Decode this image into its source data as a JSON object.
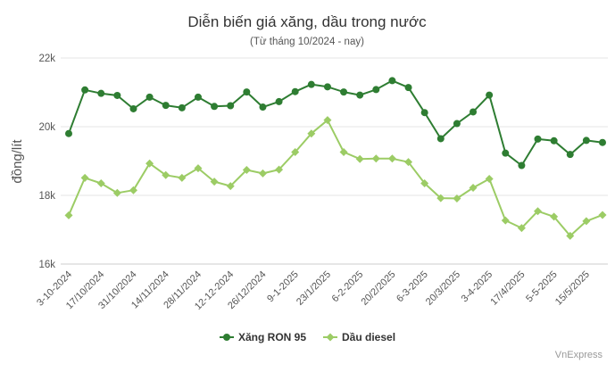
{
  "chart_data": {
    "type": "line",
    "title": "Diễn biến giá xăng, dầu trong nước",
    "subtitle": "(Từ tháng 10/2024 - nay)",
    "ylabel": "đồng/lít",
    "xlabel": "",
    "ylim": [
      16000,
      22000
    ],
    "yticks": [
      16000,
      18000,
      20000,
      22000
    ],
    "ytick_labels": [
      "16k",
      "18k",
      "20k",
      "22k"
    ],
    "x_tick_labels": [
      "3-10-2024",
      "17/10/2024",
      "31/10/2024",
      "14/11/2024",
      "28/11/2024",
      "12-12-2024",
      "26/12/2024",
      "9-1-2025",
      "23/1/2025",
      "6-2-2025",
      "20/2/2025",
      "6-3-2025",
      "20/3/2025",
      "3-4-2025",
      "17/4/2025",
      "5-5-2025",
      "15/5/2025"
    ],
    "grid": "horizontal",
    "legend_position": "bottom",
    "series": [
      {
        "name": "Xăng RON 95",
        "color": "#2e7d32",
        "values": [
          19800,
          21070,
          20970,
          20910,
          20520,
          20860,
          20620,
          20550,
          20860,
          20590,
          20610,
          21010,
          20570,
          20730,
          21020,
          21230,
          21160,
          21010,
          20920,
          21080,
          21340,
          21140,
          20410,
          19650,
          20090,
          20430,
          20920,
          19230,
          18870,
          19640,
          19590,
          19190,
          19600,
          19540
        ]
      },
      {
        "name": "Dầu diesel",
        "color": "#9ccc65",
        "values": [
          17420,
          18510,
          18350,
          18070,
          18150,
          18930,
          18590,
          18510,
          18790,
          18400,
          18270,
          18740,
          18640,
          18750,
          19260,
          19800,
          20190,
          19260,
          19060,
          19070,
          19070,
          18970,
          18350,
          17920,
          17910,
          18220,
          18480,
          17270,
          17050,
          17540,
          17380,
          16820,
          17250,
          17430
        ]
      }
    ]
  },
  "credit": "VnExpress"
}
